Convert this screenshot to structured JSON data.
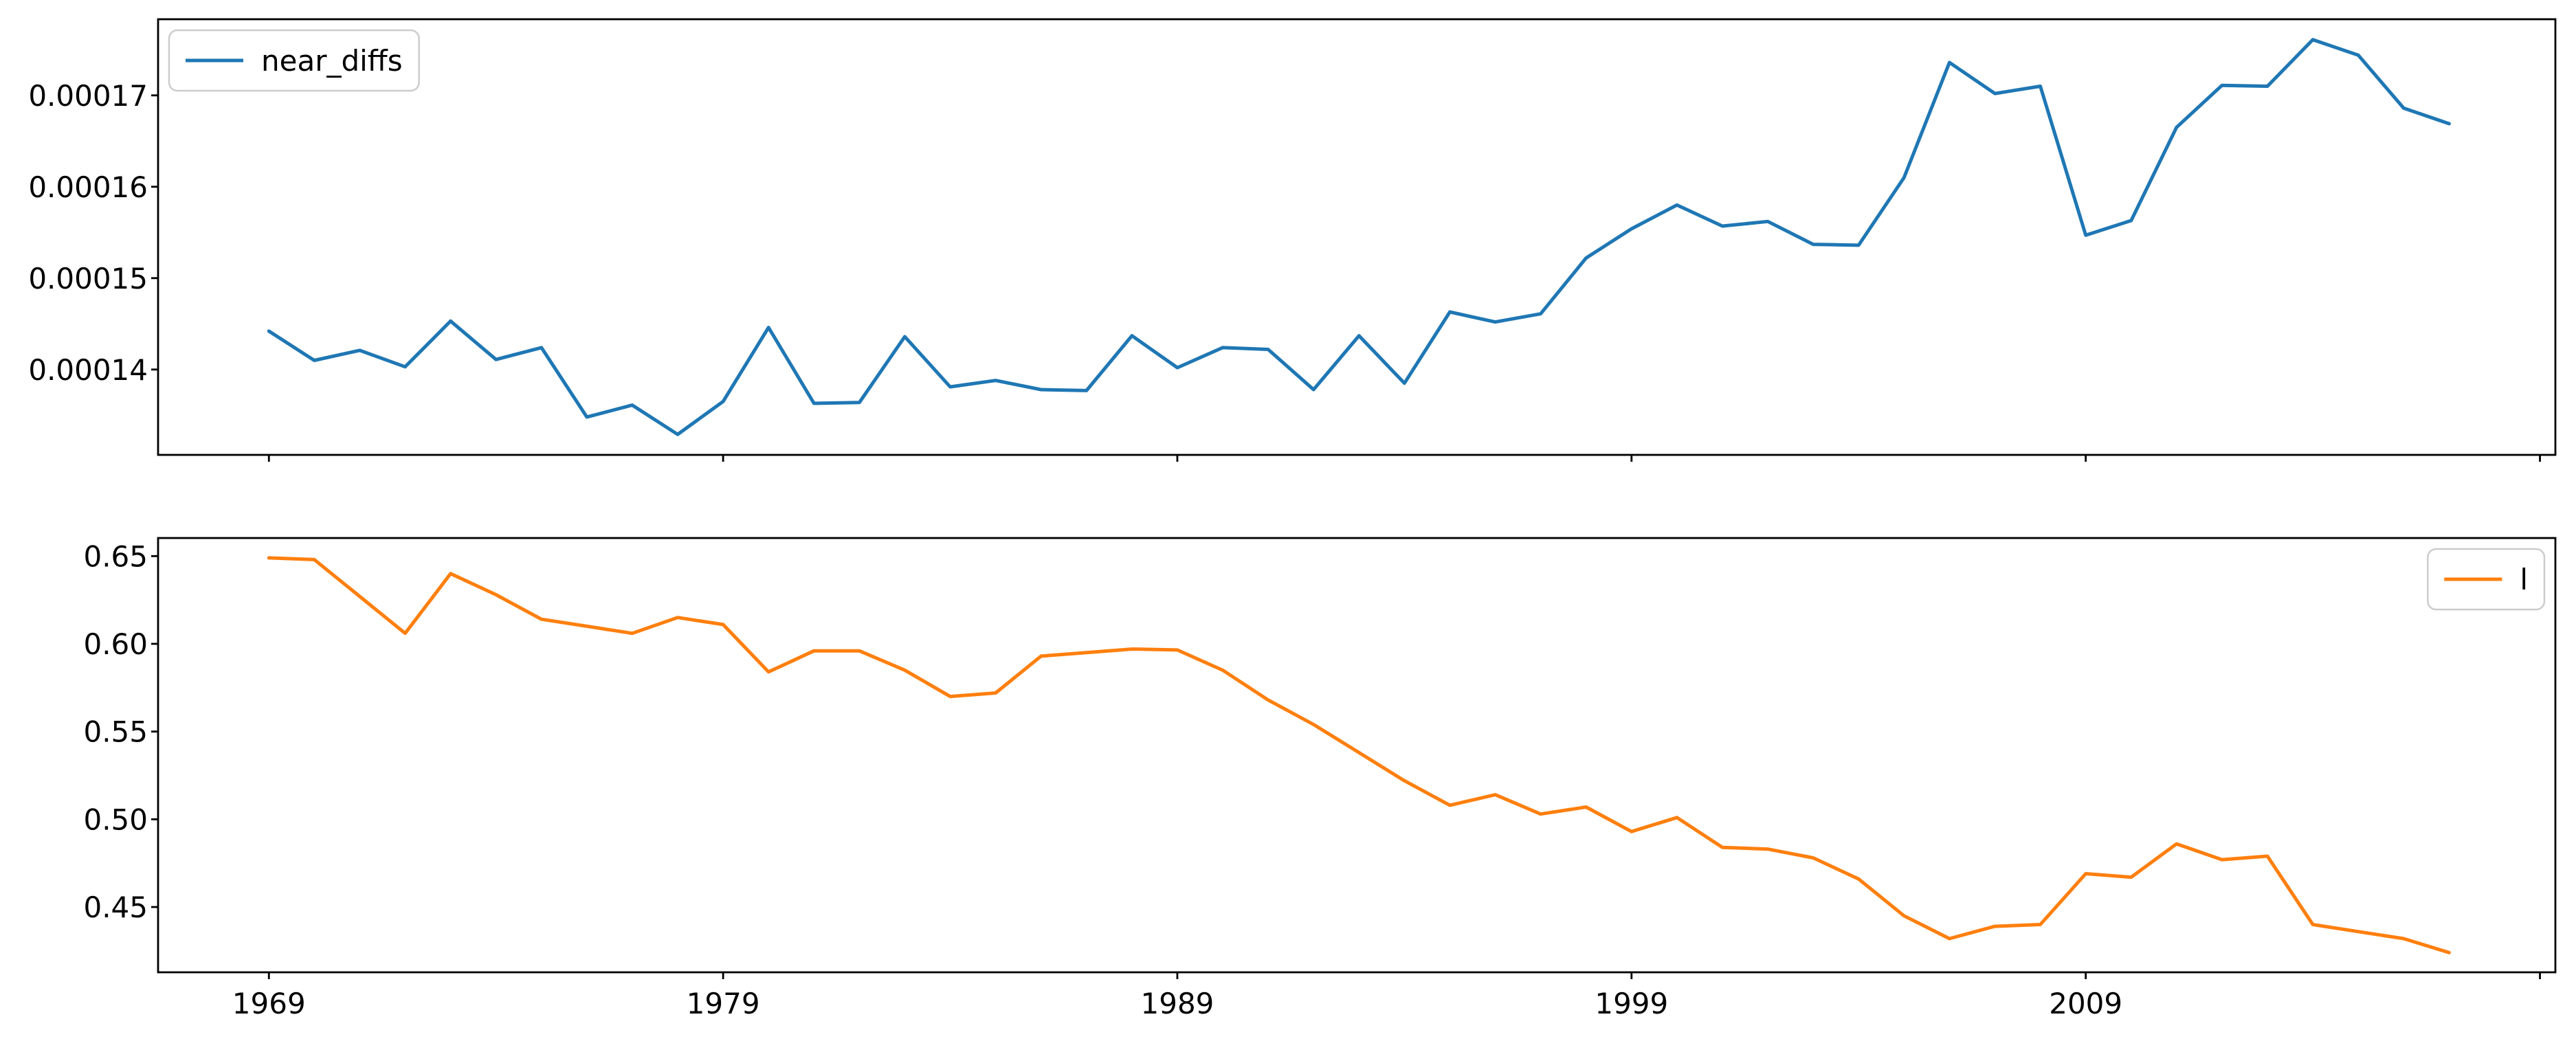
{
  "page": {
    "background": "#ffffff",
    "title": ""
  },
  "colors": {
    "series_blue": "#1f77b4",
    "series_orange": "#ff7f0e",
    "axis": "#000000",
    "legend_border": "#cccccc"
  },
  "chart_data": [
    {
      "type": "line",
      "title": "",
      "xlabel": "",
      "ylabel": "",
      "grid": false,
      "x": [
        1969,
        1970,
        1971,
        1972,
        1973,
        1974,
        1975,
        1976,
        1977,
        1978,
        1979,
        1980,
        1981,
        1982,
        1983,
        1984,
        1985,
        1986,
        1987,
        1988,
        1989,
        1990,
        1991,
        1992,
        1993,
        1994,
        1995,
        1996,
        1997,
        1998,
        1999,
        2000,
        2001,
        2002,
        2003,
        2004,
        2005,
        2006,
        2007,
        2008,
        2009,
        2010,
        2011,
        2012,
        2013,
        2014,
        2015,
        2016,
        2017
      ],
      "series": [
        {
          "name": "near_diffs",
          "color": "#1f77b4",
          "values": [
            0.0001442,
            0.000141,
            0.0001421,
            0.0001403,
            0.0001453,
            0.0001411,
            0.0001424,
            0.0001348,
            0.0001361,
            0.0001329,
            0.0001365,
            0.0001446,
            0.0001363,
            0.0001364,
            0.0001436,
            0.0001381,
            0.0001388,
            0.0001378,
            0.0001377,
            0.0001437,
            0.0001402,
            0.0001424,
            0.0001422,
            0.0001378,
            0.0001437,
            0.0001385,
            0.0001463,
            0.0001452,
            0.0001461,
            0.0001522,
            0.0001554,
            0.000158,
            0.0001557,
            0.0001562,
            0.0001537,
            0.0001536,
            0.000161,
            0.0001736,
            0.0001702,
            0.000171,
            0.0001547,
            0.0001563,
            0.0001665,
            0.0001711,
            0.000171,
            0.0001761,
            0.0001744,
            0.0001686,
            0.0001669
          ]
        }
      ],
      "legend": {
        "entries": [
          "near_diffs"
        ],
        "position": "upper-left"
      },
      "xlim": [
        1966.56,
        2019.34
      ],
      "ylim": [
        0.00013066,
        0.00017833
      ],
      "xticks": {
        "values": [
          1969,
          1979,
          1989,
          1999,
          2009,
          2019
        ],
        "labels": [
          "",
          "",
          "",
          "",
          "",
          ""
        ]
      },
      "yticks": {
        "values": [
          0.00014,
          0.00015,
          0.00016,
          0.00017
        ],
        "labels": [
          "0.00014",
          "0.00015",
          "0.00016",
          "0.00017"
        ]
      }
    },
    {
      "type": "line",
      "title": "",
      "xlabel": "",
      "ylabel": "",
      "grid": false,
      "x": [
        1969,
        1970,
        1971,
        1972,
        1973,
        1974,
        1975,
        1976,
        1977,
        1978,
        1979,
        1980,
        1981,
        1982,
        1983,
        1984,
        1985,
        1986,
        1987,
        1988,
        1989,
        1990,
        1991,
        1992,
        1993,
        1994,
        1995,
        1996,
        1997,
        1998,
        1999,
        2000,
        2001,
        2002,
        2003,
        2004,
        2005,
        2006,
        2007,
        2008,
        2009,
        2010,
        2011,
        2012,
        2013,
        2014,
        2015,
        2016,
        2017
      ],
      "series": [
        {
          "name": "l",
          "color": "#ff7f0e",
          "values": [
            0.649,
            0.648,
            0.627,
            0.606,
            0.64,
            0.628,
            0.614,
            0.61,
            0.606,
            0.615,
            0.611,
            0.584,
            0.596,
            0.596,
            0.585,
            0.57,
            0.572,
            0.593,
            0.595,
            0.597,
            0.5965,
            0.585,
            0.568,
            0.554,
            0.538,
            0.522,
            0.508,
            0.514,
            0.503,
            0.507,
            0.493,
            0.501,
            0.484,
            0.483,
            0.478,
            0.466,
            0.445,
            0.432,
            0.439,
            0.44,
            0.469,
            0.467,
            0.486,
            0.477,
            0.479,
            0.44,
            0.436,
            0.432,
            0.424
          ]
        }
      ],
      "legend": {
        "entries": [
          "l"
        ],
        "position": "upper-right"
      },
      "xlim": [
        1966.56,
        2019.34
      ],
      "ylim": [
        0.4128,
        0.6603
      ],
      "xticks": {
        "values": [
          1969,
          1979,
          1989,
          1999,
          2009,
          2019
        ],
        "labels": [
          "1969",
          "1979",
          "1989",
          "1999",
          "2009",
          ""
        ]
      },
      "yticks": {
        "values": [
          0.45,
          0.5,
          0.55,
          0.6,
          0.65
        ],
        "labels": [
          "0.45",
          "0.50",
          "0.55",
          "0.60",
          "0.65"
        ]
      }
    }
  ]
}
